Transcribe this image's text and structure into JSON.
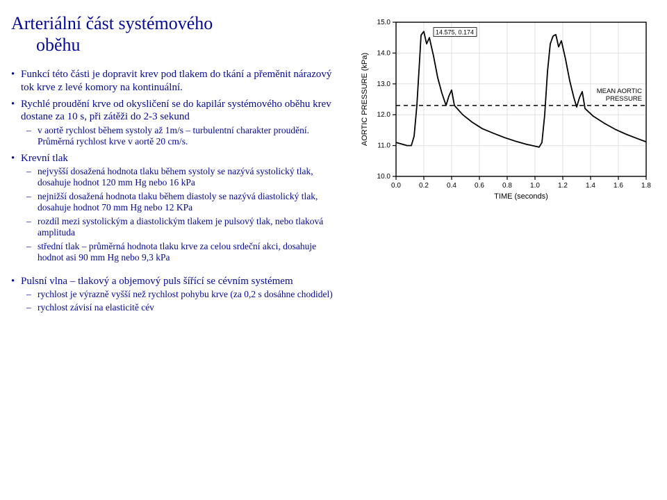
{
  "title_line1": "Arteriální část systémového",
  "title_line2": "oběhu",
  "bullets": {
    "b0": "Funkcí této části je dopravit krev pod tlakem do tkání a přeměnit nárazový tok krve z levé komory na kontinuální.",
    "b1": "Rychlé proudění krve od okysličení se do kapilár systémového oběhu krev dostane za 10 s, při zátěži do 2-3 sekund",
    "b1_s0": "v aortě rychlost během systoly až 1m/s – turbulentní charakter proudění. Průměrná rychlost krve v aortě 20 cm/s.",
    "b2": "Krevní tlak",
    "b2_s0": "nejvyšší dosažená hodnota tlaku během systoly se nazývá systolický tlak, dosahuje hodnot 120 mm Hg nebo 16 kPa",
    "b2_s1": "nejnižší dosažená hodnota tlaku během diastoly se nazývá diastolický tlak, dosahuje hodnot 70 mm Hg nebo 12 KPa",
    "b2_s2": "rozdíl mezi systolickým a diastolickým tlakem je pulsový tlak, nebo tlaková amplituda",
    "b2_s3": "střední tlak – průměrná hodnota tlaku krve za celou srdeční akci, dosahuje hodnot asi 90 mm Hg nebo 9,3 kPa",
    "b3": "Pulsní vlna – tlakový a objemový puls šířící se cévním systémem",
    "b3_s0": "rychlost je výrazně vyšší než rychlost pohybu krve (za 0,2 s dosáhne chodidel)",
    "b3_s1": "rychlost závisí na elasticitě cév"
  },
  "chart": {
    "bg": "#ffffff",
    "axis_color": "#000000",
    "grid_color": "#e0e0e0",
    "line_color": "#000000",
    "mean_line_color": "#000000",
    "text_color": "#000000",
    "font_family": "Arial, Helvetica, sans-serif",
    "ylabel": "AORTIC PRESSURE (kPa)",
    "xlabel": "TIME (seconds)",
    "annot_point": "14.575, 0.174",
    "mean_label": "MEAN AORTIC\nPRESSURE",
    "xmin": 0.0,
    "xmax": 1.8,
    "xtick_step": 0.2,
    "ymin": 10.0,
    "ymax": 15.0,
    "ytick_step": 1.0,
    "mean_y": 12.3,
    "xticks": [
      "0.0",
      "0.2",
      "0.4",
      "0.6",
      "0.8",
      "1.0",
      "1.2",
      "1.4",
      "1.6",
      "1.8"
    ],
    "yticks": [
      "10.0",
      "11.0",
      "12.0",
      "13.0",
      "14.0",
      "15.0"
    ],
    "series": [
      [
        0.0,
        11.1
      ],
      [
        0.04,
        11.05
      ],
      [
        0.08,
        11.0
      ],
      [
        0.11,
        11.0
      ],
      [
        0.13,
        11.3
      ],
      [
        0.15,
        12.3
      ],
      [
        0.17,
        13.8
      ],
      [
        0.18,
        14.58
      ],
      [
        0.2,
        14.7
      ],
      [
        0.22,
        14.3
      ],
      [
        0.24,
        14.5
      ],
      [
        0.27,
        13.9
      ],
      [
        0.3,
        13.2
      ],
      [
        0.33,
        12.7
      ],
      [
        0.36,
        12.3
      ],
      [
        0.38,
        12.6
      ],
      [
        0.4,
        12.8
      ],
      [
        0.42,
        12.3
      ],
      [
        0.48,
        12.0
      ],
      [
        0.55,
        11.75
      ],
      [
        0.62,
        11.55
      ],
      [
        0.7,
        11.4
      ],
      [
        0.78,
        11.26
      ],
      [
        0.86,
        11.14
      ],
      [
        0.94,
        11.04
      ],
      [
        1.0,
        10.98
      ],
      [
        1.03,
        10.95
      ],
      [
        1.05,
        11.1
      ],
      [
        1.07,
        12.0
      ],
      [
        1.09,
        13.4
      ],
      [
        1.11,
        14.3
      ],
      [
        1.13,
        14.55
      ],
      [
        1.15,
        14.6
      ],
      [
        1.17,
        14.2
      ],
      [
        1.19,
        14.4
      ],
      [
        1.22,
        13.8
      ],
      [
        1.25,
        13.1
      ],
      [
        1.28,
        12.55
      ],
      [
        1.3,
        12.25
      ],
      [
        1.32,
        12.55
      ],
      [
        1.34,
        12.75
      ],
      [
        1.36,
        12.2
      ],
      [
        1.42,
        11.95
      ],
      [
        1.5,
        11.72
      ],
      [
        1.58,
        11.52
      ],
      [
        1.66,
        11.36
      ],
      [
        1.74,
        11.22
      ],
      [
        1.8,
        11.12
      ]
    ]
  }
}
